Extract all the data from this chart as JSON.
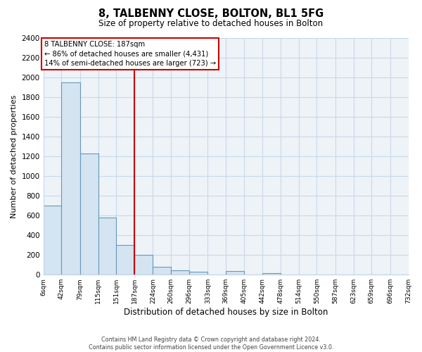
{
  "title": "8, TALBENNY CLOSE, BOLTON, BL1 5FG",
  "subtitle": "Size of property relative to detached houses in Bolton",
  "xlabel": "Distribution of detached houses by size in Bolton",
  "ylabel": "Number of detached properties",
  "bar_color": "#d4e4f0",
  "bar_edge_color": "#6699bb",
  "bins": [
    6,
    42,
    79,
    115,
    151,
    187,
    224,
    260,
    296,
    333,
    369,
    405,
    442,
    478,
    514,
    550,
    587,
    623,
    659,
    696,
    732
  ],
  "counts": [
    700,
    1950,
    1230,
    580,
    300,
    200,
    80,
    45,
    30,
    0,
    35,
    0,
    15,
    0,
    0,
    0,
    0,
    0,
    0,
    0
  ],
  "property_size": 187,
  "vline_color": "#cc0000",
  "annotation_line1": "8 TALBENNY CLOSE: 187sqm",
  "annotation_line2": "← 86% of detached houses are smaller (4,431)",
  "annotation_line3": "14% of semi-detached houses are larger (723) →",
  "ylim": [
    0,
    2400
  ],
  "yticks": [
    0,
    200,
    400,
    600,
    800,
    1000,
    1200,
    1400,
    1600,
    1800,
    2000,
    2200,
    2400
  ],
  "box_edge_color": "#cc0000",
  "footer_line1": "Contains HM Land Registry data © Crown copyright and database right 2024.",
  "footer_line2": "Contains public sector information licensed under the Open Government Licence v3.0.",
  "background_color": "#ffffff",
  "plot_bg_color": "#eef3f8",
  "grid_color": "#c8d8e8"
}
